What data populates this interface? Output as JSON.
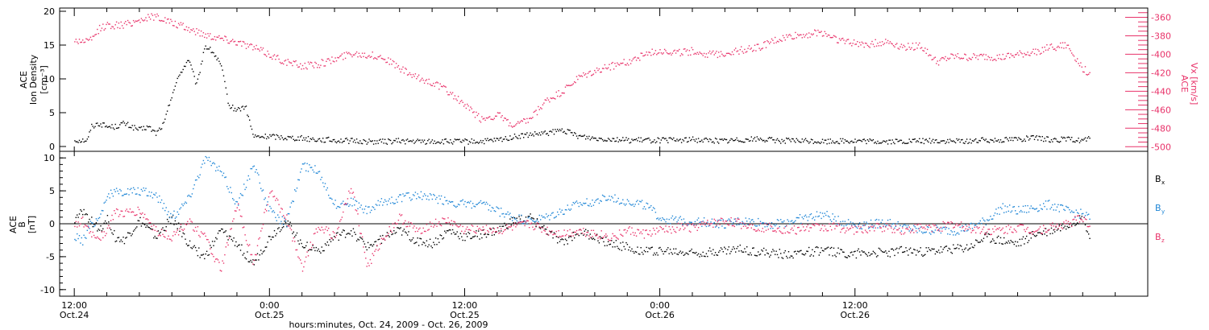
{
  "chart_data": [
    {
      "type": "scatter",
      "panel": "top",
      "left_axis": {
        "label_lines": [
          "ACE",
          "Ion Density",
          "[cm⁻³]"
        ],
        "ylim": [
          0,
          20
        ],
        "ticks": [
          0,
          5,
          10,
          15,
          20
        ]
      },
      "right_axis": {
        "label_lines": [
          "ACE",
          "Vx [km/s]"
        ],
        "ylim": [
          -505,
          -350
        ],
        "ticks": [
          -500,
          -480,
          -460,
          -440,
          -420,
          -400,
          -380,
          -360
        ]
      },
      "series": [
        {
          "axis": "left",
          "color": "#000000",
          "x": [
            0,
            0.4,
            0.8,
            1.0,
            1.5,
            2.0,
            2.5,
            3.0,
            3.5,
            4.0,
            4.5,
            5.0,
            5.5,
            6.0,
            6.5,
            7.0,
            7.5,
            8.0,
            8.5,
            9.0,
            9.5,
            10.0,
            10.5,
            11.0,
            11.5,
            12.0,
            13.0,
            14.0,
            15.0,
            16.0,
            17.0,
            18.0,
            19.0,
            20.0,
            21.0,
            22.0,
            23.0,
            24.0,
            25.0,
            26.0,
            27.0,
            28.0,
            29.0,
            30.0,
            31.0,
            32.0,
            33.0,
            34.0,
            35.0,
            36.0,
            37.0,
            38.0,
            39.0,
            40.0,
            41.0,
            42.0,
            43.0,
            44.0,
            45.0,
            46.0,
            47.0,
            48.0,
            49.0,
            50.0,
            51.0,
            52.0,
            53.0,
            54.0,
            55.0,
            56.0,
            57.0,
            58.0,
            59.0,
            60.0,
            61.0,
            62.0,
            62.4
          ],
          "y": [
            1.0,
            1.0,
            1.0,
            3.0,
            3.5,
            3.0,
            3.0,
            3.5,
            3.0,
            2.5,
            3.0,
            2.0,
            3.5,
            8.0,
            11.0,
            13.0,
            9.0,
            15.0,
            14.0,
            12.0,
            6.0,
            5.5,
            6.0,
            1.5,
            1.5,
            1.6,
            1.4,
            1.3,
            1.1,
            1.0,
            0.9,
            0.8,
            0.8,
            0.9,
            0.8,
            0.8,
            0.8,
            0.8,
            0.8,
            1.0,
            1.5,
            1.8,
            2.0,
            2.5,
            1.6,
            1.3,
            1.2,
            1.0,
            1.0,
            1.0,
            1.0,
            1.1,
            1.0,
            0.9,
            1.1,
            1.2,
            1.0,
            0.9,
            0.9,
            0.8,
            0.9,
            0.9,
            0.8,
            0.8,
            0.8,
            0.9,
            0.9,
            0.8,
            0.9,
            1.0,
            1.1,
            1.2,
            1.3,
            1.1,
            1.1,
            1.0,
            1.2
          ]
        },
        {
          "axis": "right",
          "color": "#e8336a",
          "x": [
            0,
            1.0,
            1.5,
            2.0,
            3.0,
            4.0,
            5.0,
            6.0,
            7.0,
            8.0,
            9.0,
            10.0,
            11.0,
            12.0,
            13.0,
            14.0,
            15.0,
            16.0,
            17.0,
            18.0,
            19.0,
            20.0,
            21.0,
            22.0,
            23.0,
            24.0,
            25.0,
            26.0,
            27.0,
            28.0,
            29.0,
            30.0,
            31.0,
            32.0,
            33.0,
            34.0,
            35.0,
            36.0,
            37.0,
            38.0,
            39.0,
            40.0,
            41.0,
            42.0,
            43.0,
            44.0,
            45.0,
            46.0,
            47.0,
            48.0,
            49.0,
            50.0,
            51.0,
            52.0,
            53.0,
            54.0,
            55.0,
            56.0,
            57.0,
            58.0,
            59.0,
            60.0,
            61.0,
            62.0,
            62.4
          ],
          "y": [
            -385,
            -385,
            -372,
            -368,
            -368,
            -362,
            -358,
            -366,
            -372,
            -378,
            -382,
            -386,
            -392,
            -400,
            -408,
            -412,
            -410,
            -405,
            -398,
            -400,
            -403,
            -415,
            -425,
            -430,
            -440,
            -455,
            -470,
            -465,
            -478,
            -470,
            -450,
            -440,
            -425,
            -418,
            -412,
            -408,
            -400,
            -395,
            -398,
            -396,
            -400,
            -398,
            -395,
            -392,
            -385,
            -380,
            -378,
            -376,
            -384,
            -388,
            -388,
            -386,
            -392,
            -390,
            -408,
            -402,
            -403,
            -402,
            -403,
            -400,
            -397,
            -392,
            -390,
            -415,
            -420
          ]
        }
      ]
    },
    {
      "type": "scatter",
      "panel": "bottom",
      "left_axis": {
        "label_lines": [
          "ACE",
          "B",
          "[nT]"
        ],
        "ylim": [
          -11,
          11
        ],
        "ticks": [
          -10,
          -5,
          0,
          5,
          10
        ]
      },
      "series": [
        {
          "name": "Bx",
          "color": "#000000",
          "x": [
            0,
            0.5,
            1.0,
            1.5,
            2.0,
            2.5,
            3.0,
            3.5,
            4.0,
            5.0,
            6.0,
            7.0,
            8.0,
            9.0,
            10.0,
            11.0,
            12.0,
            13.0,
            14.0,
            15.0,
            16.0,
            17.0,
            18.0,
            19.0,
            20.0,
            21.0,
            22.0,
            23.0,
            24.0,
            25.0,
            26.0,
            27.0,
            28.0,
            29.0,
            30.0,
            31.0,
            32.0,
            33.0,
            34.0,
            35.0,
            36.0,
            37.0,
            38.0,
            39.0,
            40.0,
            41.0,
            42.0,
            43.0,
            44.0,
            45.0,
            46.0,
            47.0,
            48.0,
            49.0,
            50.0,
            51.0,
            52.0,
            53.0,
            54.0,
            55.0,
            56.0,
            57.0,
            58.0,
            59.0,
            60.0,
            61.0,
            62.0,
            62.4
          ],
          "y": [
            0.5,
            2.0,
            0.5,
            -1.0,
            1.0,
            -2.0,
            -2.5,
            -1.0,
            0.5,
            -2.0,
            1.0,
            -3.0,
            -5.0,
            -1.0,
            -3.0,
            -6.0,
            -2.0,
            0.5,
            -3.0,
            -4.0,
            -2.0,
            -1.0,
            -3.5,
            -2.0,
            -1.0,
            -2.5,
            -3.0,
            -1.0,
            -2.0,
            -1.5,
            -1.0,
            0.5,
            1.0,
            -1.0,
            -3.0,
            -1.0,
            -2.0,
            -3.0,
            -3.5,
            -4.0,
            -4.0,
            -4.2,
            -4.3,
            -4.2,
            -4.0,
            -3.8,
            -4.2,
            -4.5,
            -4.5,
            -4.2,
            -4.0,
            -4.3,
            -4.5,
            -4.2,
            -4.3,
            -4.0,
            -4.2,
            -4.0,
            -3.8,
            -3.5,
            -2.0,
            -2.5,
            -3.0,
            -1.5,
            -1.0,
            0.0,
            1.0,
            -2.0
          ]
        },
        {
          "name": "By",
          "color": "#1f86d6",
          "x": [
            0,
            0.5,
            1.0,
            1.5,
            2.0,
            3.0,
            4.0,
            5.0,
            6.0,
            7.0,
            8.0,
            9.0,
            10.0,
            11.0,
            12.0,
            13.0,
            14.0,
            15.0,
            16.0,
            17.0,
            18.0,
            19.0,
            20.0,
            21.0,
            22.0,
            23.0,
            24.0,
            25.0,
            26.0,
            27.0,
            28.0,
            29.0,
            30.0,
            31.0,
            32.0,
            33.0,
            34.0,
            35.0,
            36.0,
            37.0,
            38.0,
            39.0,
            40.0,
            41.0,
            42.0,
            43.0,
            44.0,
            45.0,
            46.0,
            47.0,
            48.0,
            49.0,
            50.0,
            51.0,
            52.0,
            53.0,
            54.0,
            55.0,
            56.0,
            57.0,
            58.0,
            59.0,
            60.0,
            61.0,
            62.0,
            62.4
          ],
          "y": [
            -2.0,
            -2.5,
            0.0,
            1.0,
            4.5,
            5.0,
            5.0,
            4.5,
            1.0,
            4.0,
            10.0,
            8.0,
            3.0,
            9.0,
            2.0,
            0.0,
            9.0,
            8.0,
            3.0,
            3.5,
            2.0,
            3.5,
            4.0,
            4.5,
            4.0,
            3.5,
            3.0,
            3.0,
            2.0,
            1.0,
            0.5,
            1.0,
            2.0,
            3.0,
            3.5,
            4.0,
            3.5,
            3.0,
            1.0,
            0.5,
            0.5,
            0.3,
            0.0,
            0.5,
            0.3,
            0.0,
            0.5,
            1.0,
            1.5,
            0.5,
            0.0,
            0.0,
            0.3,
            -0.5,
            -1.0,
            -0.8,
            -1.0,
            -0.5,
            0.5,
            2.5,
            2.0,
            2.5,
            3.0,
            2.0,
            1.5,
            1.0
          ]
        },
        {
          "name": "Bz",
          "color": "#e8336a",
          "x": [
            0,
            0.5,
            1.0,
            1.5,
            2.0,
            2.5,
            3.0,
            4.0,
            5.0,
            6.0,
            7.0,
            8.0,
            9.0,
            10.0,
            11.0,
            12.0,
            13.0,
            14.0,
            15.0,
            16.0,
            17.0,
            18.0,
            19.0,
            20.0,
            21.0,
            22.0,
            23.0,
            24.0,
            25.0,
            26.0,
            27.0,
            28.0,
            29.0,
            30.0,
            31.0,
            32.0,
            33.0,
            34.0,
            35.0,
            36.0,
            37.0,
            38.0,
            39.0,
            40.0,
            41.0,
            42.0,
            43.0,
            44.0,
            45.0,
            46.0,
            47.0,
            48.0,
            49.0,
            50.0,
            51.0,
            52.0,
            53.0,
            54.0,
            55.0,
            56.0,
            57.0,
            58.0,
            59.0,
            60.0,
            61.0,
            62.0,
            62.4
          ],
          "y": [
            0.0,
            0.5,
            -1.5,
            -2.0,
            -1.0,
            2.0,
            1.5,
            2.0,
            -1.0,
            -2.0,
            0.5,
            -2.0,
            -7.0,
            3.0,
            -6.0,
            5.0,
            1.0,
            -6.5,
            0.0,
            -2.0,
            6.0,
            -6.5,
            -2.0,
            1.0,
            -1.0,
            0.0,
            0.5,
            -1.0,
            -0.5,
            -1.0,
            -0.5,
            0.0,
            -1.0,
            -1.5,
            -1.0,
            -1.5,
            -2.0,
            -1.0,
            -1.5,
            -1.0,
            -0.5,
            -0.5,
            0.0,
            0.5,
            0.0,
            -0.5,
            -0.5,
            -1.0,
            -0.5,
            -0.5,
            -0.5,
            -1.0,
            -0.5,
            -0.5,
            -1.0,
            -0.5,
            -0.5,
            0.0,
            -0.5,
            -1.0,
            -1.0,
            -0.5,
            -1.0,
            -0.5,
            0.0,
            1.0,
            0.0
          ]
        }
      ]
    }
  ],
  "x_axis": {
    "range_hours": [
      -0.9,
      66
    ],
    "major_ticks": [
      {
        "hour": 0,
        "line1": "12:00",
        "line2": "Oct.24"
      },
      {
        "hour": 12,
        "line1": "0:00",
        "line2": "Oct.25"
      },
      {
        "hour": 24,
        "line1": "12:00",
        "line2": "Oct.25"
      },
      {
        "hour": 36,
        "line1": "0:00",
        "line2": "Oct.26"
      },
      {
        "hour": 48,
        "line1": "12:00",
        "line2": "Oct.26"
      }
    ],
    "minor_tick_hours": [
      2,
      4,
      6,
      8,
      10,
      14,
      16,
      18,
      20,
      22,
      26,
      28,
      30,
      32,
      34,
      38,
      40,
      42,
      44,
      46,
      50,
      52,
      54,
      56,
      58,
      60,
      62,
      64
    ],
    "title": "hours:minutes, Oct. 24, 2009 - Oct. 26, 2009"
  },
  "legend": [
    {
      "label": "B",
      "sub": "x",
      "color": "#000000"
    },
    {
      "label": "B",
      "sub": "y",
      "color": "#1f86d6"
    },
    {
      "label": "B",
      "sub": "z",
      "color": "#e8336a"
    }
  ]
}
